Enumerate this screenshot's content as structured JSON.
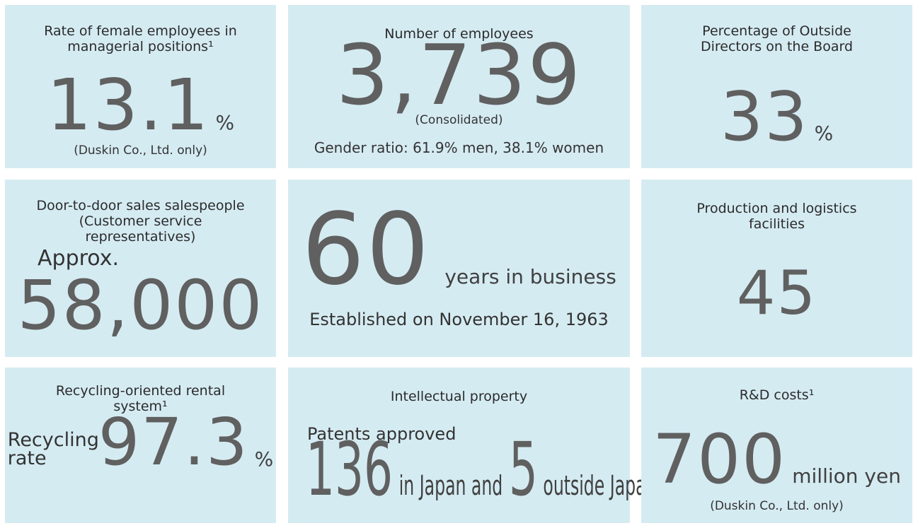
{
  "tiles": [
    {
      "title": "Rate of female employees in managerial positions¹",
      "value": "13.1",
      "unit": "%",
      "note": "(Duskin Co., Ltd. only)"
    },
    {
      "title": "Number of employees",
      "value": "3,739",
      "note": "(Consolidated)",
      "detail": "Gender ratio: 61.9% men, 38.1% women"
    },
    {
      "title": "Percentage of Outside Directors on the Board",
      "value": "33",
      "unit": "%"
    },
    {
      "title": "Door-to-door sales salespeople (Customer service representatives)",
      "prefix": "Approx.",
      "value": "58,000"
    },
    {
      "value": "60",
      "unit": "years in business",
      "note": "Established on November 16, 1963"
    },
    {
      "title": "Production and logistics facilities",
      "value": "45"
    },
    {
      "title": "Recycling-oriented rental system¹",
      "prefix": "Recycling rate",
      "value": "97.3",
      "unit": "%"
    },
    {
      "title": "Intellectual property",
      "prefix": "Patents approved",
      "value": "136",
      "unit": "in Japan and",
      "value2": "5",
      "unit2": "outside Japan"
    },
    {
      "title": "R&D costs¹",
      "value": "700",
      "unit": "million yen",
      "note": "(Duskin Co., Ltd. only)"
    }
  ]
}
